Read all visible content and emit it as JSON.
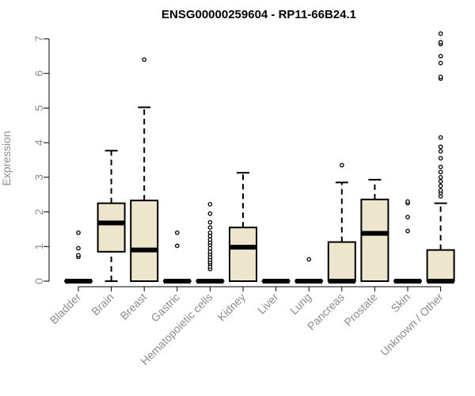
{
  "chart_data": {
    "type": "boxplot",
    "title": "ENSG00000259604 - RP11-66B24.1",
    "xlabel": "",
    "ylabel": "Expression",
    "ylim": [
      0,
      7
    ],
    "yticks": [
      0,
      1,
      2,
      3,
      4,
      5,
      6,
      7
    ],
    "grid": false,
    "colors": {
      "box_fill": "#ede5cc",
      "stroke": "#000000",
      "axis_text": "#8c8c8c"
    },
    "categories": [
      "Bladder",
      "Brain",
      "Breast",
      "Gastric",
      "Hematopoietic cells",
      "Kidney",
      "Liver",
      "Lung",
      "Pancreas",
      "Prostate",
      "Skin",
      "Unknown / Other"
    ],
    "boxes": [
      {
        "category": "Bladder",
        "min": 0,
        "q1": 0,
        "median": 0,
        "q3": 0,
        "max": 0,
        "outliers": [
          0.7,
          0.75,
          0.95,
          1.4
        ]
      },
      {
        "category": "Brain",
        "min": 0,
        "q1": 0.85,
        "median": 1.68,
        "q3": 2.25,
        "max": 3.77,
        "outliers": []
      },
      {
        "category": "Breast",
        "min": 0,
        "q1": 0,
        "median": 0.9,
        "q3": 2.33,
        "max": 5.02,
        "outliers": [
          6.4
        ]
      },
      {
        "category": "Gastric",
        "min": 0,
        "q1": 0,
        "median": 0,
        "q3": 0,
        "max": 0,
        "outliers": [
          1.02,
          1.4
        ]
      },
      {
        "category": "Hematopoietic cells",
        "min": 0,
        "q1": 0,
        "median": 0,
        "q3": 0,
        "max": 0,
        "outliers": [
          0.35,
          0.42,
          0.5,
          0.55,
          0.62,
          0.7,
          0.78,
          0.85,
          0.95,
          1.05,
          1.12,
          1.2,
          1.3,
          1.4,
          1.55,
          1.7,
          1.95,
          2.22
        ]
      },
      {
        "category": "Kidney",
        "min": 0,
        "q1": 0,
        "median": 0.98,
        "q3": 1.55,
        "max": 3.13,
        "outliers": []
      },
      {
        "category": "Liver",
        "min": 0,
        "q1": 0,
        "median": 0,
        "q3": 0,
        "max": 0,
        "outliers": []
      },
      {
        "category": "Lung",
        "min": 0,
        "q1": 0,
        "median": 0,
        "q3": 0,
        "max": 0,
        "outliers": [
          0.63
        ]
      },
      {
        "category": "Pancreas",
        "min": 0,
        "q1": 0,
        "median": 0,
        "q3": 1.13,
        "max": 2.85,
        "outliers": [
          3.35
        ]
      },
      {
        "category": "Prostate",
        "min": 0,
        "q1": 0,
        "median": 1.38,
        "q3": 2.36,
        "max": 2.93,
        "outliers": []
      },
      {
        "category": "Skin",
        "min": 0,
        "q1": 0,
        "median": 0,
        "q3": 0,
        "max": 0,
        "outliers": [
          1.45,
          1.85,
          2.25,
          2.3
        ]
      },
      {
        "category": "Unknown / Other",
        "min": 0,
        "q1": 0,
        "median": 0,
        "q3": 0.9,
        "max": 2.25,
        "outliers": [
          2.45,
          2.55,
          2.62,
          2.75,
          2.88,
          3.0,
          3.15,
          3.3,
          3.55,
          3.75,
          3.88,
          4.15,
          5.85,
          5.9,
          6.3,
          6.5,
          6.85,
          6.9,
          7.15
        ]
      }
    ]
  }
}
